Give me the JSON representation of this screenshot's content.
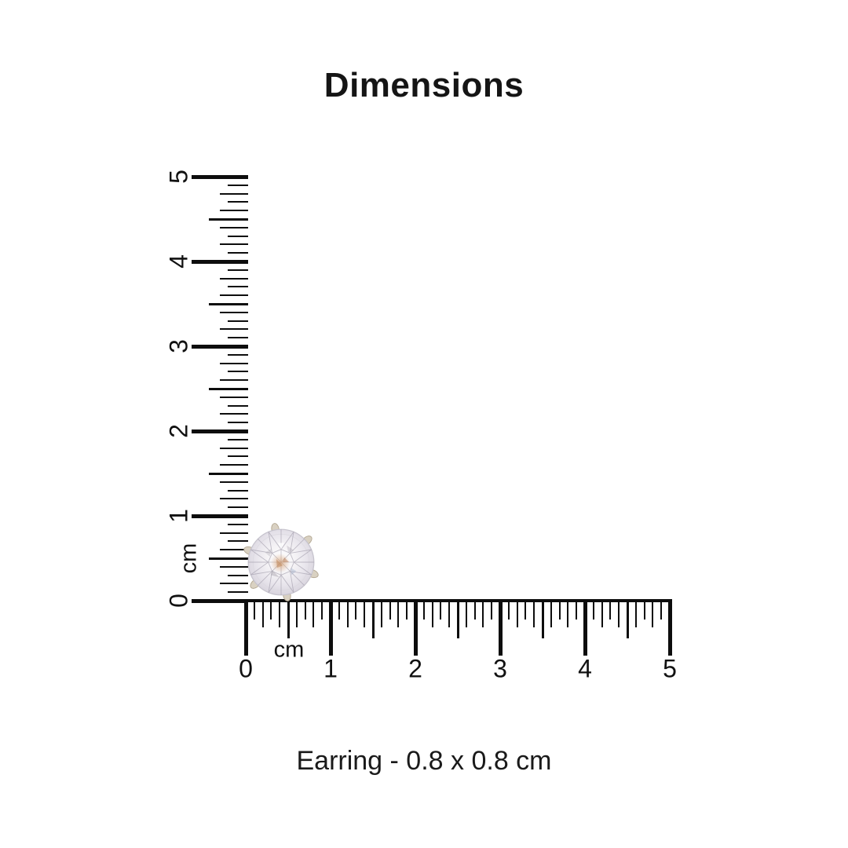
{
  "title": "Dimensions",
  "caption": "Earring - 0.8 x 0.8 cm",
  "rulers": {
    "unit": "cm",
    "min_cm": 0,
    "max_cm": 5,
    "tick_step_cm": 0.1,
    "major_tick_labels": [
      "0",
      "1",
      "2",
      "3",
      "4",
      "5"
    ]
  },
  "earring": {
    "name": "Earring",
    "width_cm": "0.8",
    "height_cm": "0.8"
  },
  "colors": {
    "ink": "#111111",
    "tick": "#0d0d0d",
    "background": "#ffffff",
    "metal": "#d9d1c2",
    "metal_edge": "#b4a893",
    "stone_edge": "#c6c3cd",
    "facet": "#9e99a8",
    "facet_dark": "#7d7888",
    "glint_warm": "#c08a5e",
    "glint_warm_deep": "#a96a3f",
    "glint_cool": "#8fa3c4"
  }
}
